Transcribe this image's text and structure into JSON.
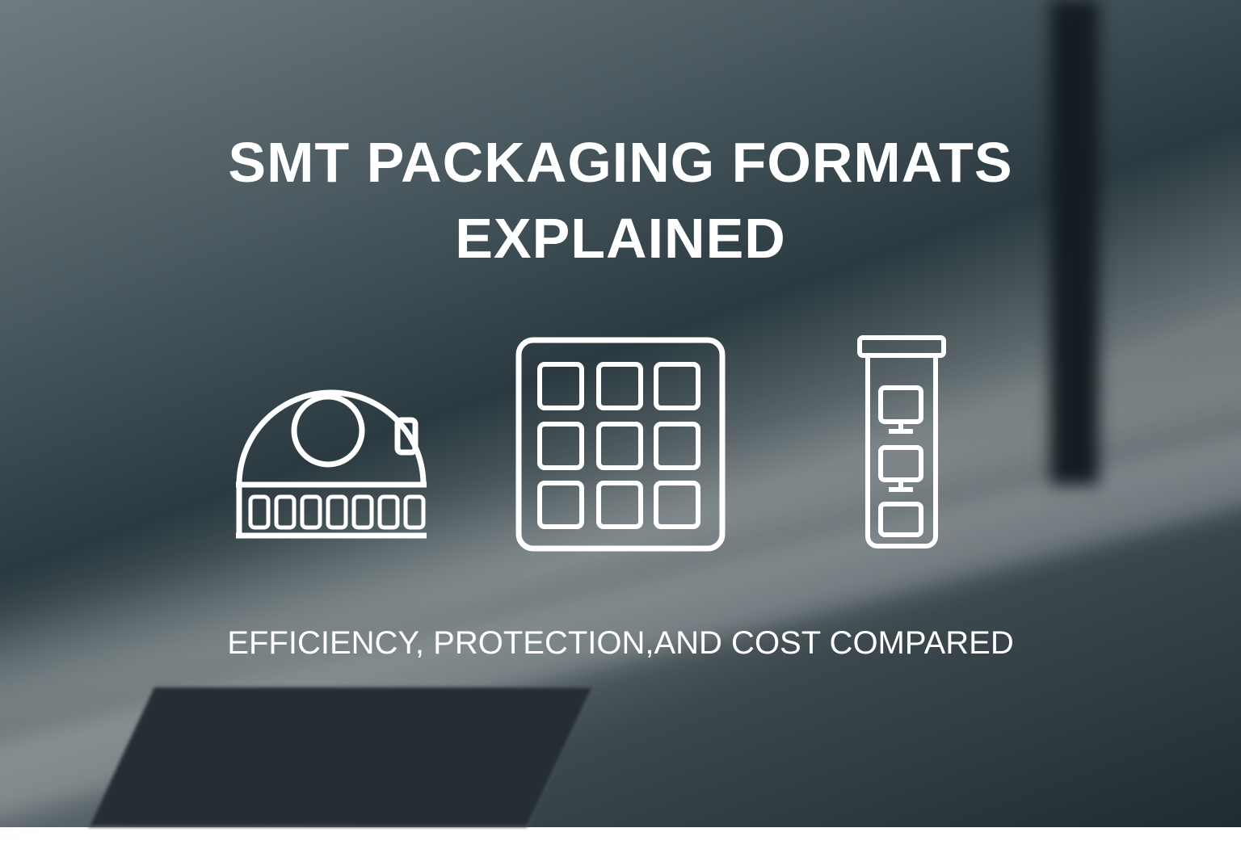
{
  "title": {
    "line1": "SMT PACKAGING FORMATS",
    "line2": "EXPLAINED"
  },
  "subtitle": "EFFICIENCY, PROTECTION,AND COST COMPARED",
  "icons": [
    "tape-reel-icon",
    "tray-icon",
    "tube-icon"
  ],
  "colors": {
    "text": "#ffffff",
    "background": "#3b484d"
  }
}
